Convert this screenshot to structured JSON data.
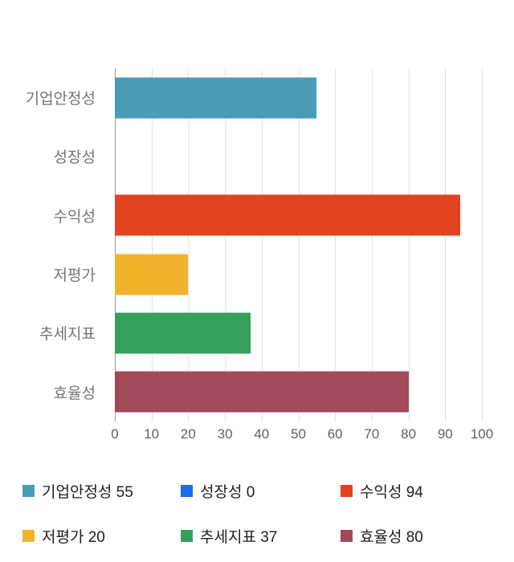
{
  "chart_data": {
    "type": "bar",
    "orientation": "horizontal",
    "title": "",
    "xlabel": "",
    "ylabel": "",
    "categories": [
      "기업안정성",
      "성장성",
      "수익성",
      "저평가",
      "추세지표",
      "효율성"
    ],
    "values": [
      55,
      0,
      94,
      20,
      37,
      80
    ],
    "colors": [
      "#4a9bb5",
      "#1a6ee8",
      "#e2431e",
      "#f2b32c",
      "#33a05c",
      "#a14a5a"
    ],
    "xlim": [
      0,
      100
    ],
    "x_ticks": [
      0,
      10,
      20,
      30,
      40,
      50,
      60,
      70,
      80,
      90,
      100
    ],
    "grid": true,
    "legend_position": "bottom",
    "legend": [
      {
        "label": "기업안정성 55",
        "color": "#4a9bb5"
      },
      {
        "label": "성장성 0",
        "color": "#1a6ee8"
      },
      {
        "label": "수익성 94",
        "color": "#e2431e"
      },
      {
        "label": "저평가 20",
        "color": "#f2b32c"
      },
      {
        "label": "추세지표 37",
        "color": "#33a05c"
      },
      {
        "label": "효율성 80",
        "color": "#a14a5a"
      }
    ]
  }
}
